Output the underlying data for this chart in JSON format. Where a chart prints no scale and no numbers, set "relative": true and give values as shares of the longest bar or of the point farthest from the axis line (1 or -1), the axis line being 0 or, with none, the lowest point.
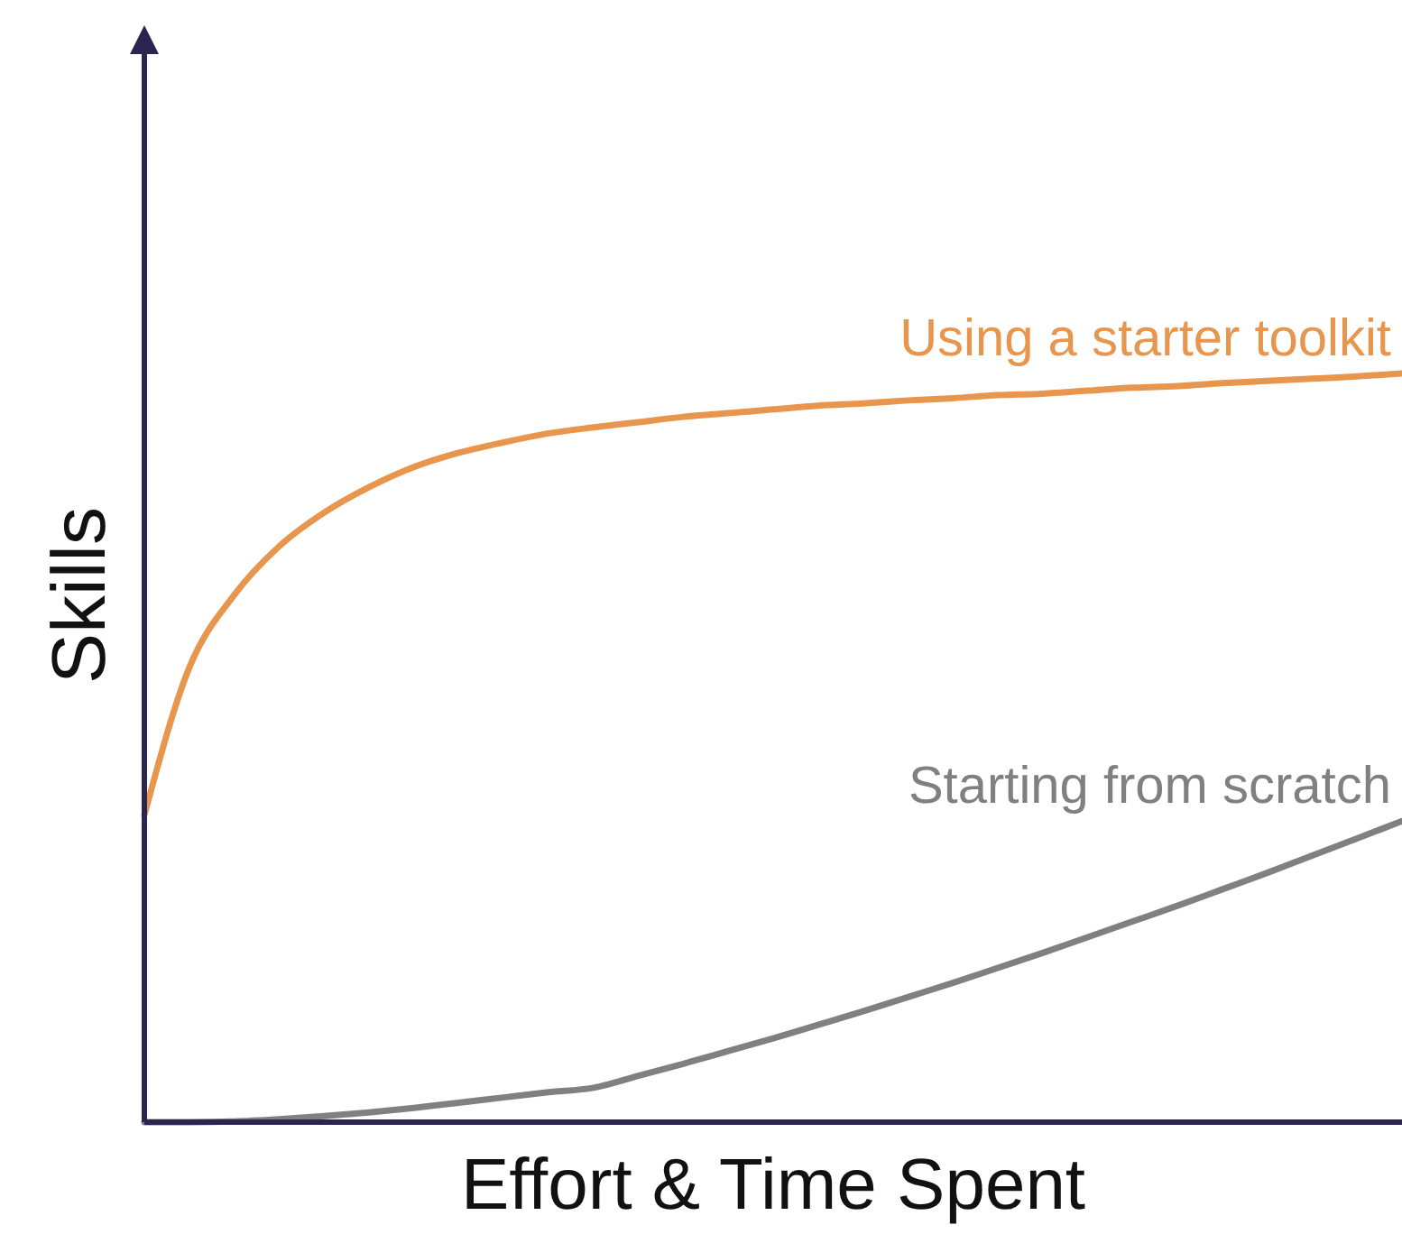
{
  "chart_data": {
    "type": "line",
    "relative": true,
    "xlabel": "Effort & Time Spent",
    "ylabel": "Skills",
    "legend": false,
    "marker": "none",
    "line_style": "solid",
    "categories": [
      null,
      null,
      null,
      null,
      null,
      null,
      null,
      null,
      null,
      null,
      null,
      null,
      null,
      null,
      null,
      null,
      null,
      null,
      null,
      null,
      null,
      null,
      null,
      null,
      null,
      null,
      null,
      null,
      null
    ],
    "series": [
      {
        "name": "Using a starter toolkit",
        "color": "#e8964e",
        "values": [
          0.41,
          0.607,
          0.704,
          0.769,
          0.814,
          0.848,
          0.875,
          0.894,
          0.908,
          0.92,
          0.928,
          0.935,
          0.942,
          0.947,
          0.952,
          0.957,
          0.96,
          0.964,
          0.967,
          0.971,
          0.973,
          0.977,
          0.981,
          0.983,
          0.987,
          0.99,
          0.993,
          0.996,
          1
        ]
      },
      {
        "name": "Starting from scratch",
        "color": "#808080",
        "values": [
          0,
          0,
          0.001,
          0.004,
          0.008,
          0.013,
          0.019,
          0.026,
          0.033,
          0.04,
          0.046,
          0.062,
          0.078,
          0.095,
          0.112,
          0.13,
          0.148,
          0.167,
          0.186,
          0.206,
          0.226,
          0.247,
          0.268,
          0.289,
          0.311,
          0.333,
          0.356,
          0.379,
          0.402
        ]
      }
    ]
  }
}
